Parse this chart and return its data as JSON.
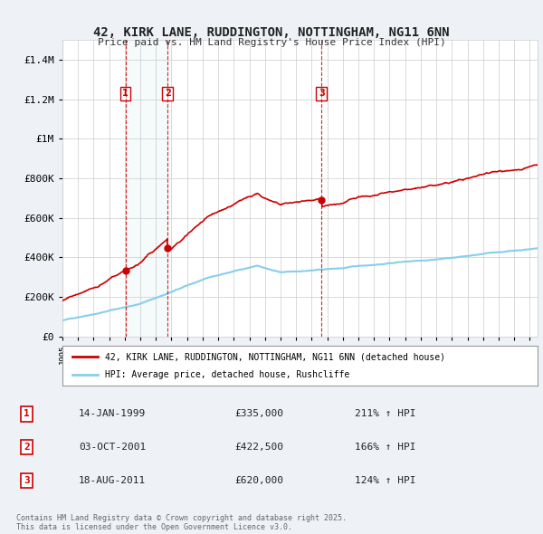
{
  "title": "42, KIRK LANE, RUDDINGTON, NOTTINGHAM, NG11 6NN",
  "subtitle": "Price paid vs. HM Land Registry's House Price Index (HPI)",
  "ylim": [
    0,
    1500000
  ],
  "yticks": [
    0,
    200000,
    400000,
    600000,
    800000,
    1000000,
    1200000,
    1400000
  ],
  "ytick_labels": [
    "£0",
    "£200K",
    "£400K",
    "£600K",
    "£800K",
    "£1M",
    "£1.2M",
    "£1.4M"
  ],
  "bg_color": "#eef2f7",
  "plot_bg_color": "#ffffff",
  "red_color": "#cc0000",
  "blue_color": "#87CEEB",
  "transactions": [
    {
      "num": 1,
      "date": "14-JAN-1999",
      "price": 335000,
      "pct": "211%",
      "x": 1999.04
    },
    {
      "num": 2,
      "date": "03-OCT-2001",
      "price": 422500,
      "pct": "166%",
      "x": 2001.75
    },
    {
      "num": 3,
      "date": "18-AUG-2011",
      "price": 620000,
      "pct": "124%",
      "x": 2011.63
    }
  ],
  "legend_label_red": "42, KIRK LANE, RUDDINGTON, NOTTINGHAM, NG11 6NN (detached house)",
  "legend_label_blue": "HPI: Average price, detached house, Rushcliffe",
  "footer": "Contains HM Land Registry data © Crown copyright and database right 2025.\nThis data is licensed under the Open Government Licence v3.0.",
  "xmin": 1995,
  "xmax": 2025.5
}
